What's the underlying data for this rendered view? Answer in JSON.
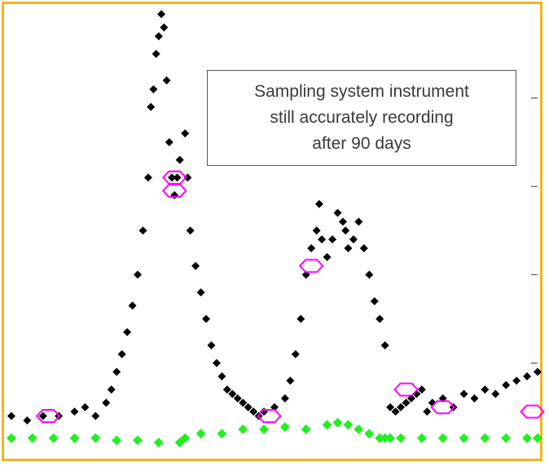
{
  "chart_data": {
    "type": "scatter",
    "title": "",
    "xlabel": "",
    "ylabel": "",
    "grid": false,
    "legend": "none",
    "xlim": [
      0,
      100
    ],
    "ylim": [
      0,
      100
    ],
    "annotation": "Sampling system instrument\nstill accurately recording\nafter 90 days",
    "colors": {
      "frame": "#f2b51e",
      "primary": "#000000",
      "reference": "#ff00ff",
      "baseline": "#22ee22"
    },
    "series": [
      {
        "marker": "diamond",
        "color": "#000000",
        "points": [
          [
            0,
            8
          ],
          [
            3,
            7
          ],
          [
            6,
            8
          ],
          [
            9,
            8
          ],
          [
            12,
            9
          ],
          [
            14,
            10
          ],
          [
            16,
            8
          ],
          [
            18,
            11
          ],
          [
            19,
            14
          ],
          [
            20,
            18
          ],
          [
            21,
            22
          ],
          [
            22,
            27
          ],
          [
            23,
            33
          ],
          [
            24,
            40
          ],
          [
            25,
            50
          ],
          [
            26,
            62
          ],
          [
            26.5,
            78
          ],
          [
            27,
            82
          ],
          [
            27.5,
            90
          ],
          [
            28,
            94
          ],
          [
            28.5,
            99
          ],
          [
            29,
            96
          ],
          [
            29.5,
            84
          ],
          [
            30,
            70
          ],
          [
            30.5,
            62
          ],
          [
            31,
            58
          ],
          [
            31.5,
            62
          ],
          [
            32,
            66
          ],
          [
            33,
            72
          ],
          [
            33.5,
            62
          ],
          [
            34,
            50
          ],
          [
            35,
            42
          ],
          [
            36,
            36
          ],
          [
            37,
            30
          ],
          [
            38,
            24
          ],
          [
            39,
            20
          ],
          [
            40,
            17
          ],
          [
            41,
            14
          ],
          [
            42,
            13
          ],
          [
            43,
            12
          ],
          [
            44,
            11
          ],
          [
            45,
            10
          ],
          [
            46,
            9
          ],
          [
            47,
            8
          ],
          [
            48,
            9
          ],
          [
            50,
            10
          ],
          [
            52,
            12
          ],
          [
            53,
            16
          ],
          [
            54,
            22
          ],
          [
            55,
            30
          ],
          [
            56,
            40
          ],
          [
            57,
            46
          ],
          [
            58,
            50
          ],
          [
            58.5,
            56
          ],
          [
            59,
            48
          ],
          [
            60,
            44
          ],
          [
            61,
            48
          ],
          [
            62,
            54
          ],
          [
            63,
            52
          ],
          [
            63.5,
            50
          ],
          [
            64,
            46
          ],
          [
            65,
            48
          ],
          [
            66,
            52
          ],
          [
            67,
            46
          ],
          [
            68,
            40
          ],
          [
            69,
            34
          ],
          [
            70,
            30
          ],
          [
            71,
            24
          ],
          [
            72,
            10
          ],
          [
            73,
            9
          ],
          [
            74,
            10
          ],
          [
            75,
            11
          ],
          [
            76,
            12
          ],
          [
            77,
            13
          ],
          [
            78,
            14
          ],
          [
            79,
            9
          ],
          [
            80,
            11
          ],
          [
            82,
            12
          ],
          [
            84,
            10
          ],
          [
            86,
            13
          ],
          [
            88,
            12
          ],
          [
            90,
            14
          ],
          [
            92,
            13
          ],
          [
            94,
            15
          ],
          [
            96,
            16
          ],
          [
            98,
            17
          ],
          [
            100,
            18
          ]
        ]
      },
      {
        "marker": "open-hexagon",
        "color": "#ff00ff",
        "points": [
          [
            7,
            8
          ],
          [
            31,
            62
          ],
          [
            31,
            59
          ],
          [
            49,
            8
          ],
          [
            57,
            42
          ],
          [
            75,
            14
          ],
          [
            82,
            10
          ],
          [
            99,
            9
          ]
        ]
      },
      {
        "marker": "diamond",
        "color": "#22ee22",
        "points": [
          [
            0,
            3
          ],
          [
            4,
            3
          ],
          [
            8,
            3
          ],
          [
            12,
            3
          ],
          [
            16,
            3
          ],
          [
            20,
            2.5
          ],
          [
            24,
            2.5
          ],
          [
            28,
            2
          ],
          [
            32,
            2
          ],
          [
            33,
            3
          ],
          [
            36,
            4
          ],
          [
            40,
            4
          ],
          [
            44,
            5
          ],
          [
            48,
            5
          ],
          [
            52,
            5.5
          ],
          [
            56,
            5
          ],
          [
            60,
            6
          ],
          [
            62,
            6.5
          ],
          [
            64,
            6
          ],
          [
            66,
            5
          ],
          [
            68,
            4
          ],
          [
            70,
            3
          ],
          [
            71,
            3
          ],
          [
            72,
            3
          ],
          [
            74,
            3
          ],
          [
            78,
            3
          ],
          [
            82,
            3
          ],
          [
            86,
            3
          ],
          [
            90,
            3
          ],
          [
            94,
            3
          ],
          [
            98,
            3
          ],
          [
            100,
            3
          ]
        ]
      }
    ]
  }
}
